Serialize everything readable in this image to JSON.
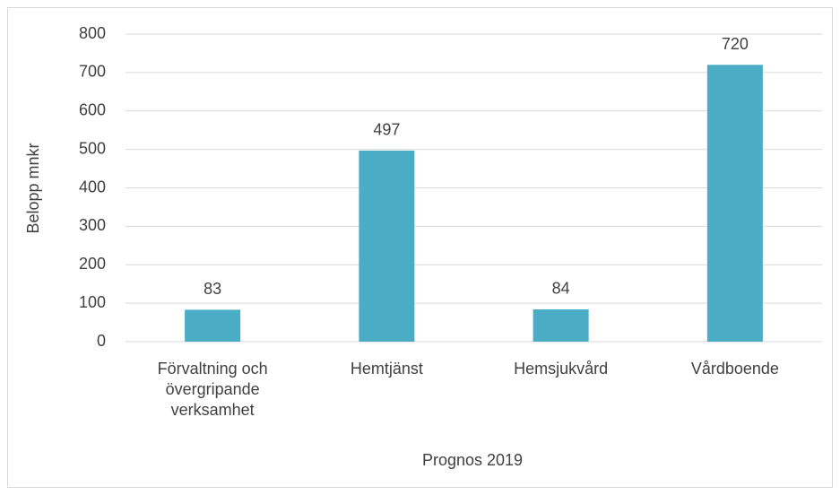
{
  "chart_data": {
    "type": "bar",
    "categories": [
      "Förvaltning och övergripande verksamhet",
      "Hemtjänst",
      "Hemsjukvård",
      "Vårdboende"
    ],
    "values": [
      83,
      497,
      84,
      720
    ],
    "color": "#4bacc6",
    "y_label": "Belopp mnkr",
    "x_label": "Prognos 2019",
    "ylim": [
      0,
      800
    ],
    "yticks": [
      0,
      100,
      200,
      300,
      400,
      500,
      600,
      700,
      800
    ],
    "grid": true
  }
}
